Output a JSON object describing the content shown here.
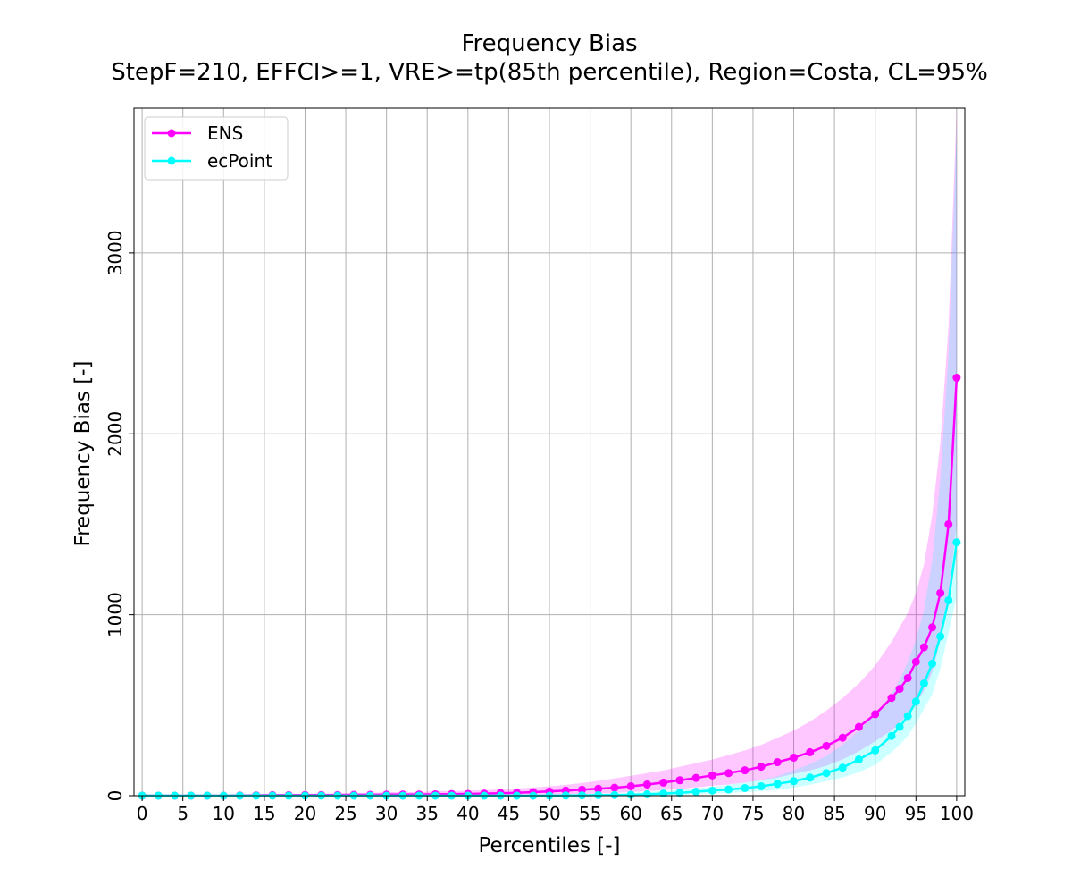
{
  "chart_data": {
    "type": "line",
    "title": "Frequency Bias",
    "subtitle": "StepF=210, EFFCI>=1, VRE>=tp(85th percentile), Region=Costa, CL=95%",
    "xlabel": "Percentiles [-]",
    "ylabel": "Frequency Bias [-]",
    "xlim": [
      -1,
      101
    ],
    "ylim": [
      0,
      3800
    ],
    "xticks": [
      "0",
      "5",
      "10",
      "15",
      "20",
      "25",
      "30",
      "35",
      "40",
      "45",
      "50",
      "55",
      "60",
      "65",
      "70",
      "75",
      "80",
      "85",
      "90",
      "95",
      "100"
    ],
    "yticks": [
      "0",
      "1000",
      "2000",
      "3000"
    ],
    "grid": true,
    "legend_position": "top-left",
    "x": [
      0,
      2,
      4,
      6,
      8,
      10,
      12,
      14,
      16,
      18,
      20,
      22,
      24,
      26,
      28,
      30,
      32,
      34,
      36,
      38,
      40,
      42,
      44,
      46,
      48,
      50,
      52,
      54,
      56,
      58,
      60,
      62,
      64,
      66,
      68,
      70,
      72,
      74,
      76,
      78,
      80,
      82,
      84,
      86,
      88,
      90,
      92,
      93,
      94,
      95,
      96,
      97,
      98,
      99,
      100
    ],
    "series": [
      {
        "name": "ENS",
        "color": "#ff00ff",
        "values": [
          0,
          0,
          0,
          0,
          0,
          0,
          1,
          2,
          3,
          3,
          4,
          4,
          4,
          5,
          5,
          6,
          7,
          7,
          8,
          9,
          10,
          12,
          14,
          16,
          20,
          23,
          28,
          33,
          38,
          44,
          52,
          62,
          72,
          85,
          98,
          112,
          125,
          140,
          160,
          185,
          210,
          240,
          275,
          320,
          380,
          450,
          540,
          590,
          650,
          740,
          820,
          930,
          1120,
          1500,
          2310
        ],
        "ci_low": [
          0,
          0,
          0,
          0,
          0,
          0,
          0,
          0,
          0,
          0,
          0,
          0,
          0,
          0,
          0,
          0,
          0,
          0,
          0,
          0,
          0,
          0,
          0,
          0,
          5,
          5,
          8,
          10,
          12,
          15,
          20,
          25,
          30,
          38,
          45,
          55,
          62,
          72,
          85,
          100,
          120,
          140,
          165,
          200,
          245,
          300,
          360,
          400,
          450,
          510,
          580,
          680,
          860,
          1100,
          1500
        ],
        "ci_high": [
          5,
          5,
          5,
          5,
          5,
          5,
          5,
          8,
          10,
          10,
          10,
          12,
          12,
          15,
          15,
          20,
          20,
          20,
          25,
          25,
          28,
          30,
          35,
          40,
          45,
          52,
          60,
          70,
          82,
          95,
          110,
          125,
          140,
          160,
          180,
          200,
          225,
          250,
          280,
          320,
          360,
          410,
          470,
          540,
          620,
          720,
          850,
          930,
          1010,
          1120,
          1280,
          1550,
          1950,
          2600,
          3800
        ]
      },
      {
        "name": "ecPoint",
        "color": "#00ffff",
        "values": [
          0,
          0,
          0,
          0,
          0,
          0,
          0,
          0,
          0,
          0,
          0,
          0,
          0,
          0,
          0,
          0,
          0,
          0,
          0,
          0,
          0,
          0,
          0,
          0,
          0,
          0,
          1,
          2,
          3,
          4,
          5,
          8,
          12,
          16,
          22,
          28,
          34,
          42,
          52,
          65,
          80,
          100,
          125,
          155,
          200,
          250,
          330,
          380,
          440,
          520,
          620,
          730,
          880,
          1080,
          1400
        ],
        "ci_low": [
          0,
          0,
          0,
          0,
          0,
          0,
          0,
          0,
          0,
          0,
          0,
          0,
          0,
          0,
          0,
          0,
          0,
          0,
          0,
          0,
          0,
          0,
          0,
          0,
          0,
          0,
          0,
          0,
          0,
          0,
          0,
          0,
          0,
          5,
          8,
          12,
          15,
          20,
          25,
          32,
          45,
          60,
          80,
          100,
          130,
          170,
          240,
          280,
          330,
          400,
          480,
          560,
          700,
          900,
          1100
        ],
        "ci_high": [
          0,
          0,
          0,
          0,
          0,
          0,
          0,
          0,
          0,
          0,
          0,
          0,
          0,
          0,
          0,
          0,
          0,
          0,
          0,
          0,
          0,
          0,
          0,
          0,
          0,
          5,
          6,
          8,
          10,
          12,
          15,
          20,
          25,
          32,
          40,
          50,
          60,
          72,
          88,
          108,
          140,
          175,
          220,
          280,
          360,
          450,
          560,
          640,
          740,
          860,
          1030,
          1300,
          1750,
          2450,
          3700
        ]
      }
    ]
  }
}
